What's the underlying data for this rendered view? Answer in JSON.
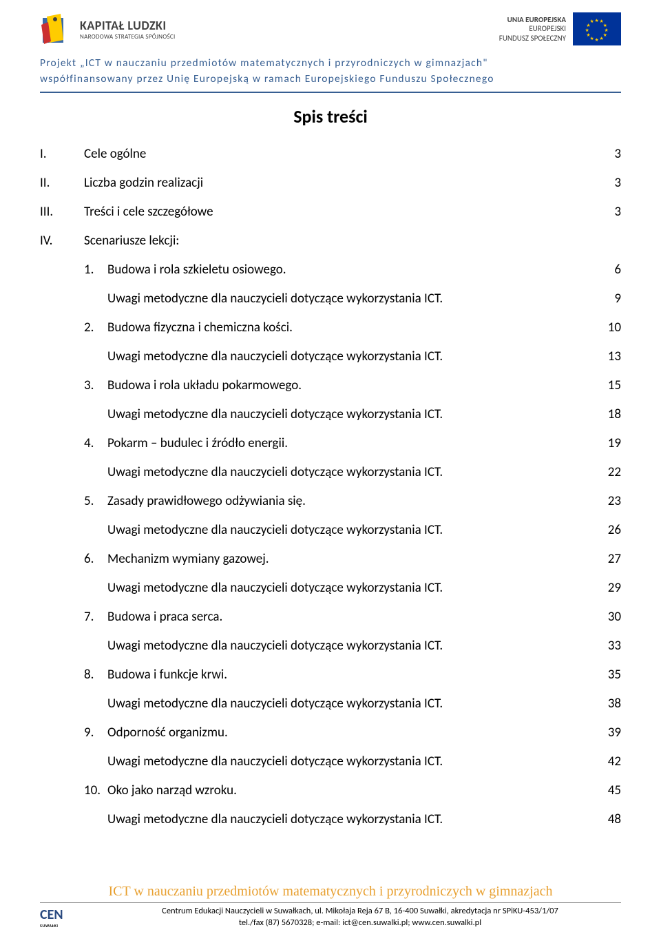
{
  "colors": {
    "accent_blue": "#375f92",
    "text": "#000000",
    "header_gray": "#404040",
    "eu_blue": "#003399",
    "eu_gold": "#ffcc00",
    "orange": "#e8a030",
    "background": "#ffffff"
  },
  "header": {
    "kl_title": "KAPITAŁ LUDZKI",
    "kl_sub": "NARODOWA STRATEGIA SPÓJNOŚCI",
    "eu_line1": "UNIA EUROPEJSKA",
    "eu_line2": "EUROPEJSKI",
    "eu_line3": "FUNDUSZ SPOŁECZNY"
  },
  "project": {
    "line1": "Projekt „ICT w nauczaniu przedmiotów matematycznych i przyrodniczych w gimnazjach\"",
    "line2": "współfinansowany przez Unię Europejską w ramach Europejskiego Funduszu Społecznego"
  },
  "title": "Spis treści",
  "toc": [
    {
      "roman": "I.",
      "text": "Cele ogólne",
      "page": "3"
    },
    {
      "roman": "II.",
      "text": "Liczba godzin realizacji",
      "page": "3"
    },
    {
      "roman": "III.",
      "text": "Treści i cele szczegółowe",
      "page": "3"
    },
    {
      "roman": "IV.",
      "text": "Scenariusze lekcji:",
      "page": ""
    },
    {
      "num": "1.",
      "text": "Budowa i rola szkieletu osiowego.",
      "page": "6"
    },
    {
      "sub": true,
      "text": "Uwagi metodyczne dla nauczycieli dotyczące wykorzystania ICT.",
      "page": "9"
    },
    {
      "num": "2.",
      "text": "Budowa fizyczna i chemiczna kości.",
      "page": "10"
    },
    {
      "sub": true,
      "text": "Uwagi metodyczne dla nauczycieli dotyczące wykorzystania ICT.",
      "page": "13"
    },
    {
      "num": "3.",
      "text": "Budowa i rola układu pokarmowego.",
      "page": "15"
    },
    {
      "sub": true,
      "text": "Uwagi metodyczne dla nauczycieli dotyczące wykorzystania ICT.",
      "page": "18"
    },
    {
      "num": "4.",
      "text": "Pokarm – budulec i źródło energii.",
      "page": "19"
    },
    {
      "sub": true,
      "text": "Uwagi metodyczne dla nauczycieli dotyczące wykorzystania ICT.",
      "page": "22"
    },
    {
      "num": "5.",
      "text": "Zasady prawidłowego odżywiania się.",
      "page": "23"
    },
    {
      "sub": true,
      "text": "Uwagi metodyczne dla nauczycieli dotyczące wykorzystania ICT.",
      "page": "26"
    },
    {
      "num": "6.",
      "text": "Mechanizm wymiany gazowej.",
      "page": "27"
    },
    {
      "sub": true,
      "text": "Uwagi metodyczne dla nauczycieli dotyczące wykorzystania ICT.",
      "page": "29"
    },
    {
      "num": "7.",
      "text": "Budowa i praca serca.",
      "page": "30"
    },
    {
      "sub": true,
      "text": "Uwagi metodyczne dla nauczycieli dotyczące wykorzystania ICT.",
      "page": "33"
    },
    {
      "num": "8.",
      "text": "Budowa i funkcje krwi.",
      "page": "35"
    },
    {
      "sub": true,
      "text": "Uwagi metodyczne dla nauczycieli dotyczące wykorzystania ICT.",
      "page": "38"
    },
    {
      "num": "9.",
      "text": "Odporność organizmu.",
      "page": "39"
    },
    {
      "sub": true,
      "text": "Uwagi metodyczne dla nauczycieli dotyczące wykorzystania ICT.",
      "page": "42"
    },
    {
      "num": "10.",
      "text": "Oko jako narząd wzroku.",
      "page": "45"
    },
    {
      "sub": true,
      "text": "Uwagi metodyczne dla nauczycieli dotyczące wykorzystania ICT.",
      "page": "48"
    }
  ],
  "footer": {
    "banner": "ICT w nauczaniu przedmiotów matematycznych i przyrodniczych w gimnazjach",
    "cen_title": "CEN",
    "cen_sub": "SUWAŁKI",
    "line1": "Centrum Edukacji Nauczycieli w Suwałkach, ul. Mikołaja Reja 67 B, 16-400 Suwałki, akredytacja nr SPiKU-453/1/07",
    "line2": "tel./fax (87) 5670328; e-mail: ict@cen.suwalki.pl; www.cen.suwalki.pl"
  }
}
